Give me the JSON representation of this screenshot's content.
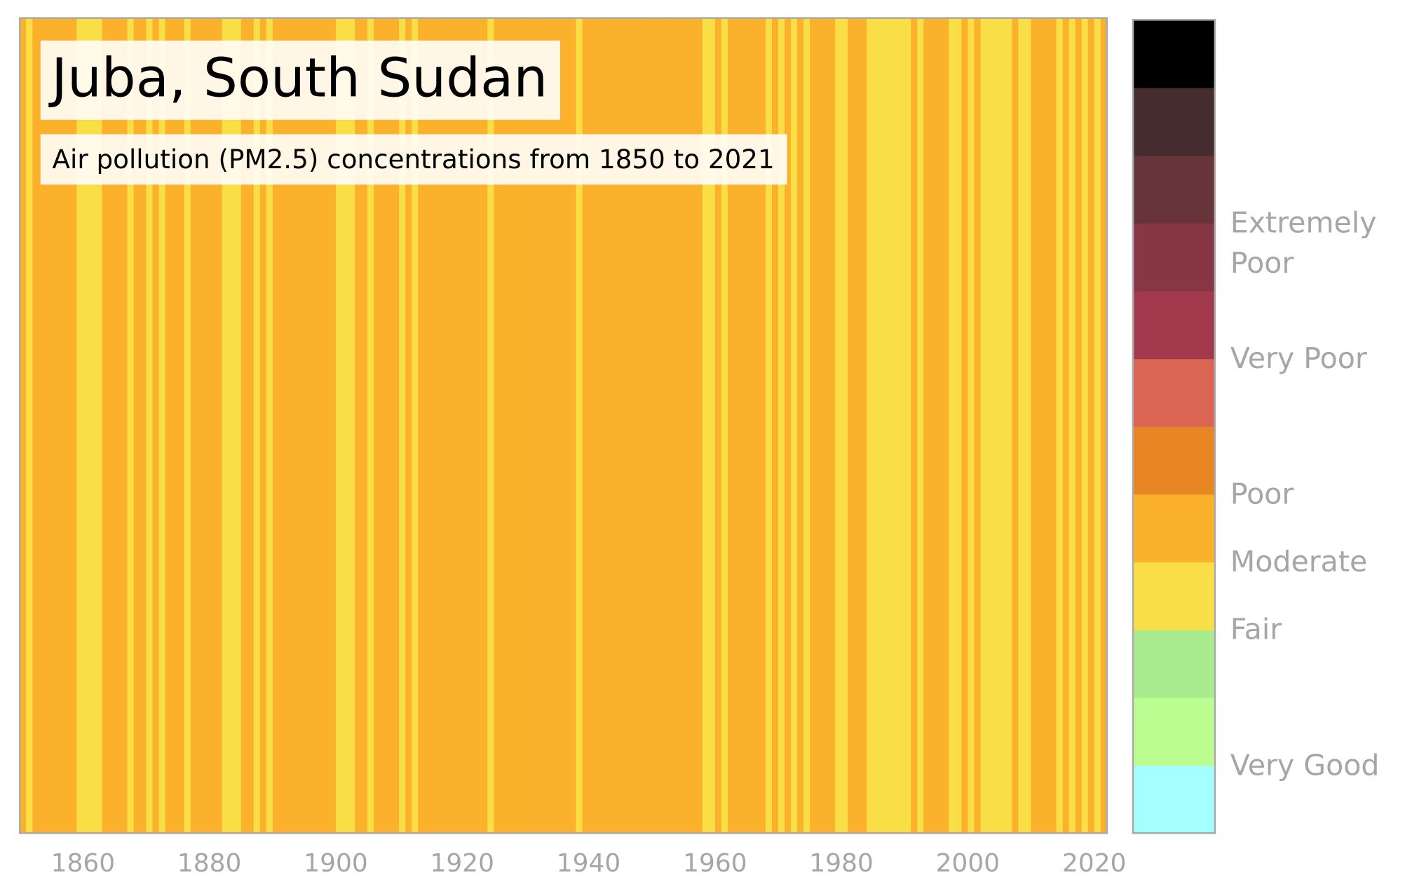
{
  "chart_data": {
    "type": "stripes",
    "title": "Juba, South Sudan",
    "subtitle": "Air pollution (PM2.5) concentrations from 1850 to 2021",
    "x": [
      1850,
      1851,
      1852,
      1853,
      1854,
      1855,
      1856,
      1857,
      1858,
      1859,
      1860,
      1861,
      1862,
      1863,
      1864,
      1865,
      1866,
      1867,
      1868,
      1869,
      1870,
      1871,
      1872,
      1873,
      1874,
      1875,
      1876,
      1877,
      1878,
      1879,
      1880,
      1881,
      1882,
      1883,
      1884,
      1885,
      1886,
      1887,
      1888,
      1889,
      1890,
      1891,
      1892,
      1893,
      1894,
      1895,
      1896,
      1897,
      1898,
      1899,
      1900,
      1901,
      1902,
      1903,
      1904,
      1905,
      1906,
      1907,
      1908,
      1909,
      1910,
      1911,
      1912,
      1913,
      1914,
      1915,
      1916,
      1917,
      1918,
      1919,
      1920,
      1921,
      1922,
      1923,
      1924,
      1925,
      1926,
      1927,
      1928,
      1929,
      1930,
      1931,
      1932,
      1933,
      1934,
      1935,
      1936,
      1937,
      1938,
      1939,
      1940,
      1941,
      1942,
      1943,
      1944,
      1945,
      1946,
      1947,
      1948,
      1949,
      1950,
      1951,
      1952,
      1953,
      1954,
      1955,
      1956,
      1957,
      1958,
      1959,
      1960,
      1961,
      1962,
      1963,
      1964,
      1965,
      1966,
      1967,
      1968,
      1969,
      1970,
      1971,
      1972,
      1973,
      1974,
      1975,
      1976,
      1977,
      1978,
      1979,
      1980,
      1981,
      1982,
      1983,
      1984,
      1985,
      1986,
      1987,
      1988,
      1989,
      1990,
      1991,
      1992,
      1993,
      1994,
      1995,
      1996,
      1997,
      1998,
      1999,
      2000,
      2001,
      2002,
      2003,
      2004,
      2005,
      2006,
      2007,
      2008,
      2009,
      2010,
      2011,
      2012,
      2013,
      2014,
      2015,
      2016,
      2017,
      2018,
      2019,
      2020,
      2021
    ],
    "values": [
      4.5,
      3.5,
      4.5,
      4.5,
      4.5,
      4.5,
      4.5,
      4.5,
      4.5,
      3.5,
      3.5,
      3.5,
      3.5,
      4.5,
      4.5,
      4.5,
      4.5,
      3.5,
      4.5,
      4.5,
      3.5,
      4.5,
      3.5,
      4.5,
      4.5,
      4.5,
      3.5,
      4.5,
      4.5,
      4.5,
      4.5,
      4.5,
      3.5,
      3.5,
      3.5,
      4.5,
      4.5,
      3.5,
      4.5,
      3.5,
      4.5,
      4.5,
      4.5,
      4.5,
      4.5,
      4.5,
      4.5,
      4.5,
      4.5,
      4.5,
      3.5,
      3.5,
      3.5,
      4.5,
      4.5,
      3.5,
      4.5,
      4.5,
      4.5,
      4.5,
      3.5,
      4.5,
      3.5,
      4.5,
      4.5,
      4.5,
      4.5,
      4.5,
      4.5,
      4.5,
      4.5,
      4.5,
      4.5,
      4.5,
      3.5,
      4.5,
      4.5,
      4.5,
      4.5,
      4.5,
      4.5,
      4.5,
      4.5,
      4.5,
      4.5,
      4.5,
      4.5,
      4.5,
      3.5,
      4.5,
      4.5,
      4.5,
      4.5,
      4.5,
      4.5,
      4.5,
      4.5,
      4.5,
      4.5,
      4.5,
      4.5,
      4.5,
      4.5,
      4.5,
      4.5,
      4.5,
      4.5,
      4.5,
      3.5,
      3.5,
      4.5,
      3.5,
      4.5,
      4.5,
      4.5,
      4.5,
      4.5,
      4.5,
      3.5,
      4.5,
      3.5,
      4.5,
      3.5,
      4.5,
      3.5,
      4.5,
      4.5,
      4.5,
      4.5,
      3.5,
      3.5,
      4.5,
      4.5,
      4.5,
      3.5,
      3.5,
      3.5,
      3.5,
      3.5,
      3.5,
      3.5,
      4.5,
      3.5,
      4.5,
      4.5,
      4.5,
      4.5,
      3.5,
      3.5,
      4.5,
      3.5,
      4.5,
      3.5,
      3.5,
      3.5,
      3.5,
      3.5,
      4.5,
      3.5,
      3.5,
      4.5,
      4.5,
      4.5,
      4.5,
      3.5,
      4.5,
      3.5,
      4.5,
      3.5,
      4.5,
      3.5,
      4.5
    ],
    "xlim": [
      1850,
      2022
    ],
    "xticks": [
      1860,
      1880,
      1900,
      1920,
      1940,
      1960,
      1980,
      2000,
      2020
    ],
    "colorbar": {
      "clim": [
        0,
        12
      ],
      "colors": [
        "#a4ffff",
        "#bcfd91",
        "#a8ec8f",
        "#f9df45",
        "#fbb12b",
        "#e88624",
        "#db6555",
        "#a3394d",
        "#873643",
        "#673539",
        "#452d2f",
        "#000000"
      ],
      "ticks": [
        {
          "value": 1,
          "label": "Very Good"
        },
        {
          "value": 3,
          "label": "Fair"
        },
        {
          "value": 4,
          "label": "Moderate"
        },
        {
          "value": 5,
          "label": "Poor"
        },
        {
          "value": 7,
          "label": "Very Poor"
        },
        {
          "value": 8.7,
          "label": "Extremely Poor"
        }
      ]
    }
  }
}
